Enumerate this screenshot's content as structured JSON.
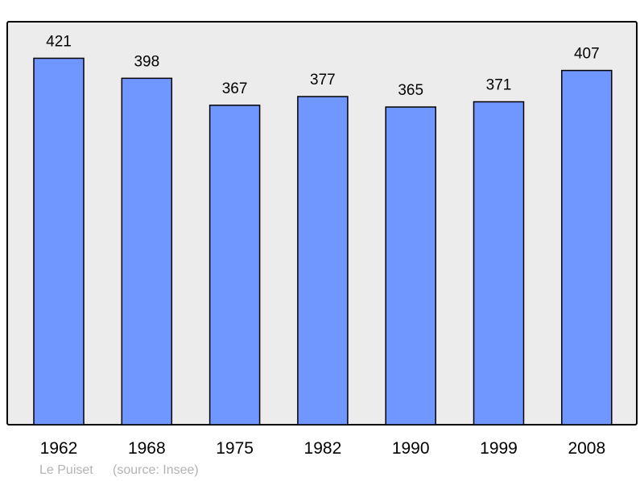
{
  "chart_data": {
    "type": "bar",
    "categories": [
      "1962",
      "1968",
      "1975",
      "1982",
      "1990",
      "1999",
      "2008"
    ],
    "values": [
      421,
      398,
      367,
      377,
      365,
      371,
      407
    ],
    "ylim": [
      0,
      463
    ],
    "grid": false,
    "bar_color": "#7096ff",
    "background_color": "#ececec",
    "place_name": "Le Puiset",
    "source": "(source: Insee)"
  }
}
